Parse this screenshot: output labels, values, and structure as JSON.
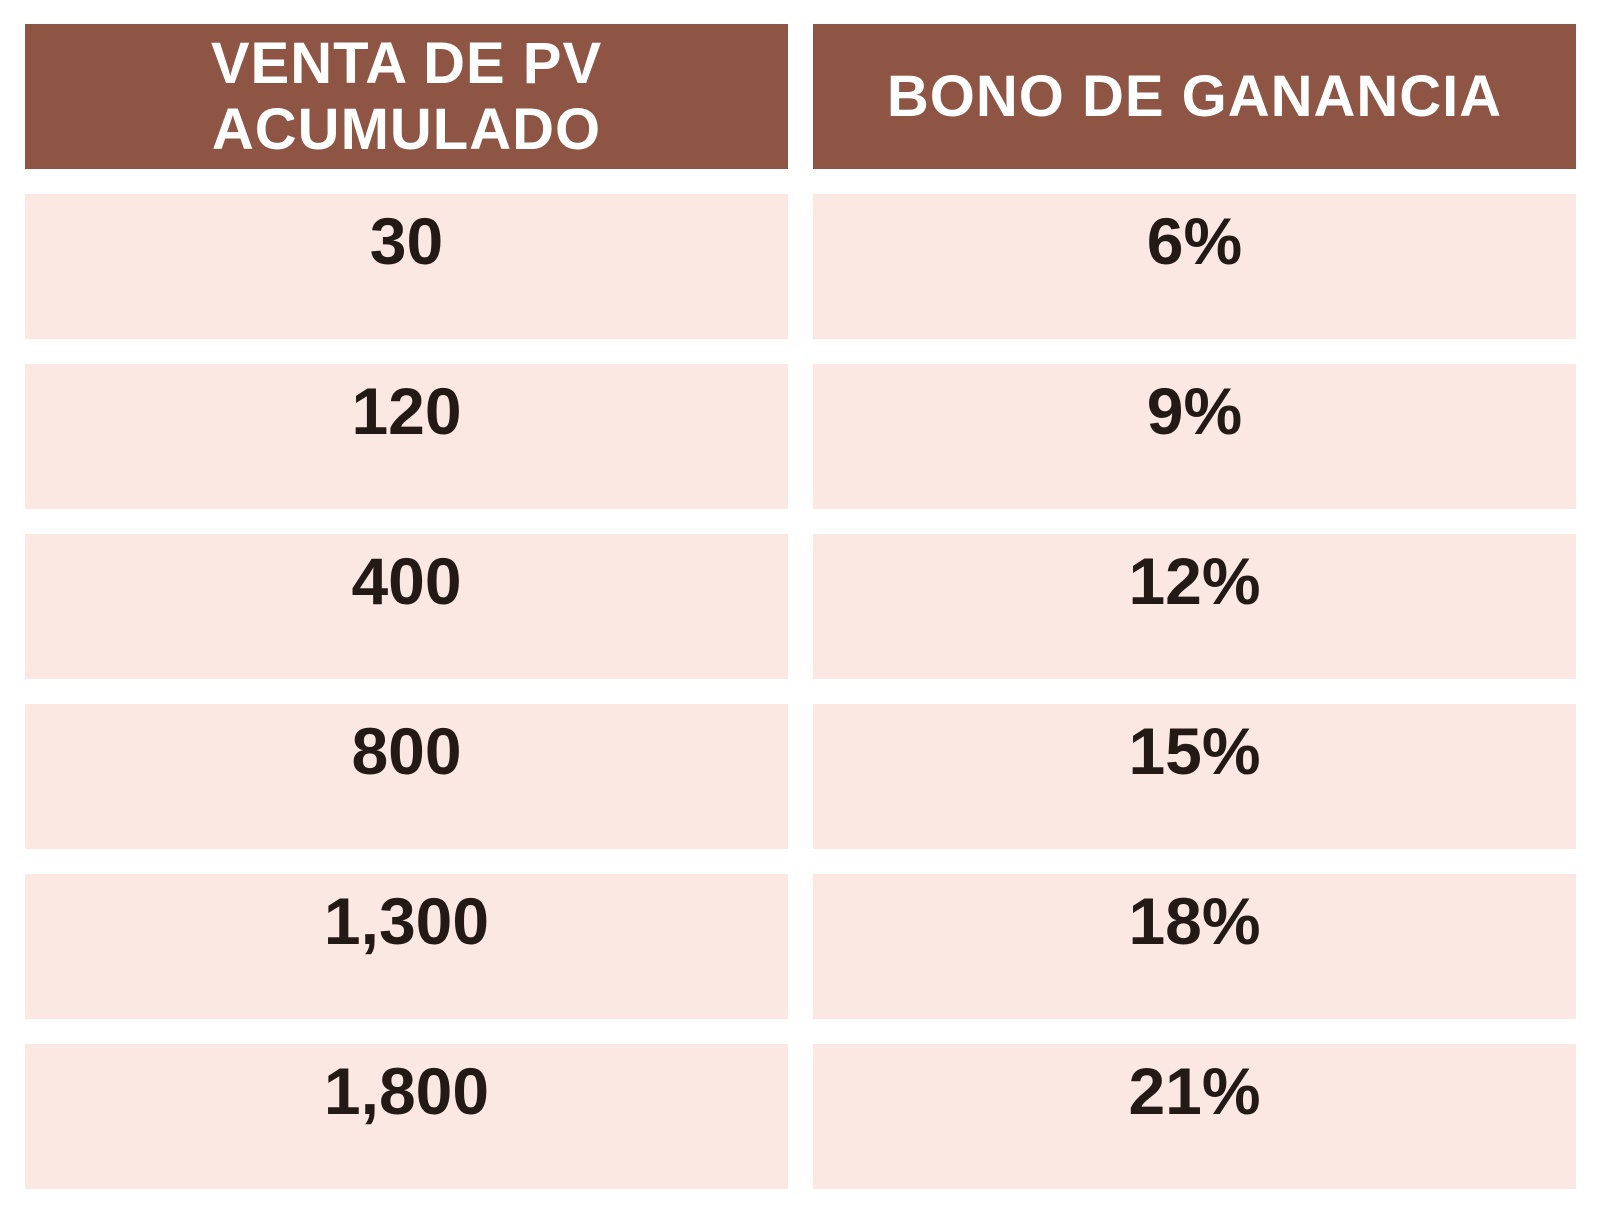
{
  "headers": {
    "col1_line1": "VENTA DE PV",
    "col1_line2": "ACUMULADO",
    "col2": "BONO DE GANANCIA"
  },
  "rows": [
    {
      "pv": "30",
      "bono": "6%"
    },
    {
      "pv": "120",
      "bono": "9%"
    },
    {
      "pv": "400",
      "bono": "12%"
    },
    {
      "pv": "800",
      "bono": "15%"
    },
    {
      "pv": "1,300",
      "bono": "18%"
    },
    {
      "pv": "1,800",
      "bono": "21%"
    }
  ],
  "colors": {
    "header_bg": "#8e5545",
    "header_text": "#ffffff",
    "row_bg": "#fce8e3",
    "row_text": "#231a15"
  }
}
